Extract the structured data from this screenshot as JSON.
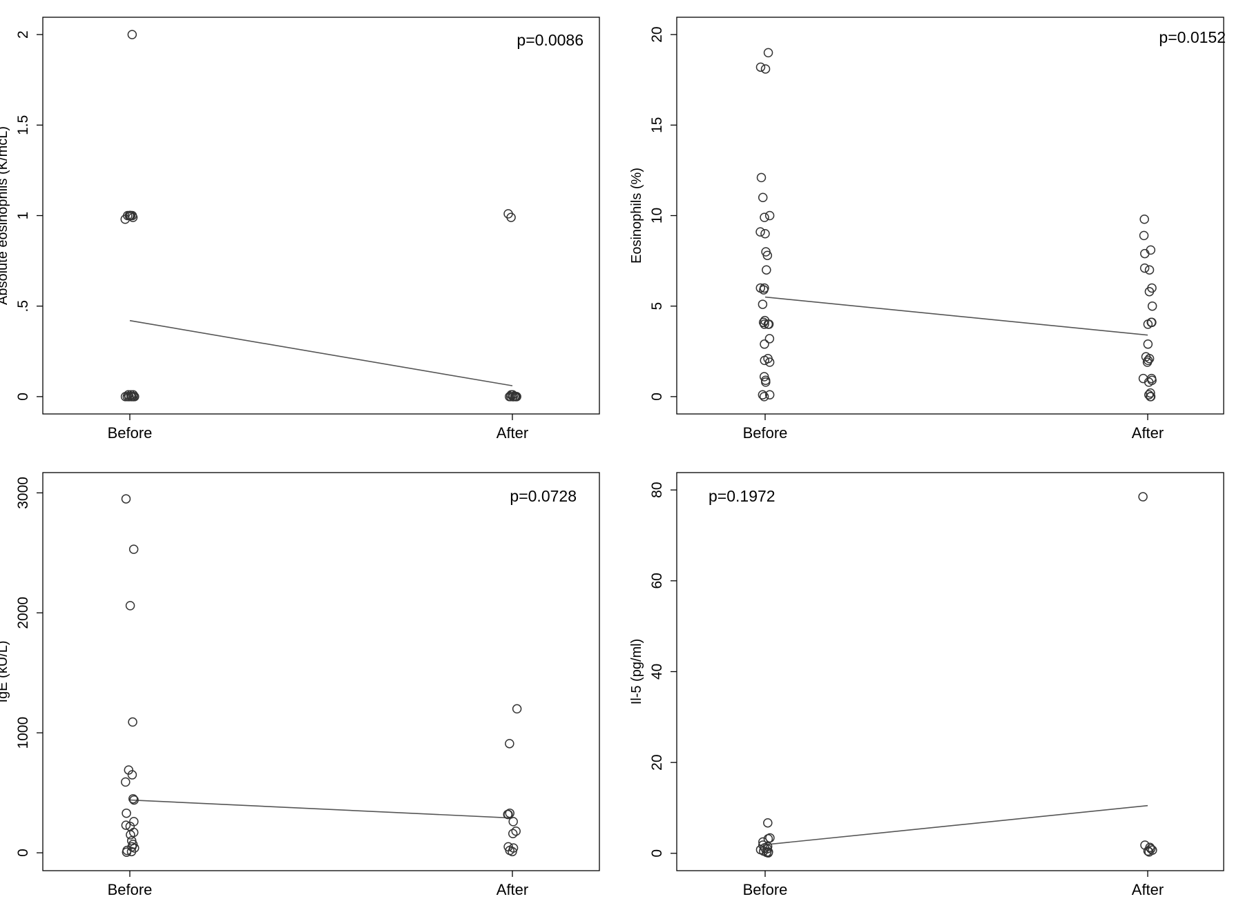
{
  "chart_data": [
    {
      "type": "scatter",
      "ylabel": "Absolute eosinophils (K/mcL)",
      "annotation": "p=0.0086",
      "categories": [
        "Before",
        "After"
      ],
      "yticks": [
        0,
        0.5,
        1,
        1.5,
        2
      ],
      "ytick_labels": [
        "0",
        ".5",
        "1",
        "1.5",
        "2"
      ],
      "ylim": [
        -0.05,
        2.05
      ],
      "series": [
        {
          "values": [
            2.0,
            1.0,
            1.0,
            1.0,
            0.99,
            1.0,
            1.0,
            1.0,
            1.0,
            0.98,
            1.0,
            0.01,
            0.0,
            0.0,
            0.01,
            0.0,
            0.0,
            0.0,
            0.0,
            0.0,
            0.01,
            0.0,
            0.0
          ]
        },
        {
          "values": [
            1.01,
            0.99,
            0.0,
            0.0,
            0.01,
            0.0,
            0.0,
            0.0,
            0.0,
            0.01,
            0.0,
            0.0,
            0.0,
            0.0
          ]
        }
      ],
      "means": [
        0.42,
        0.06
      ]
    },
    {
      "type": "scatter",
      "ylabel": "Eosinophils (%)",
      "annotation": "p=0.0152",
      "categories": [
        "Before",
        "After"
      ],
      "yticks": [
        0,
        5,
        10,
        15,
        20
      ],
      "ytick_labels": [
        "0",
        "5",
        "10",
        "15",
        "20"
      ],
      "ylim": [
        -0.5,
        20.5
      ],
      "series": [
        {
          "values": [
            19.0,
            18.1,
            18.2,
            12.1,
            11.0,
            10.0,
            9.9,
            9.1,
            9.0,
            8.0,
            7.8,
            7.0,
            6.0,
            6.0,
            5.9,
            5.1,
            4.2,
            4.1,
            4.0,
            4.0,
            4.0,
            3.2,
            2.9,
            2.1,
            2.0,
            1.9,
            1.1,
            0.9,
            0.8,
            0.1,
            0.0,
            0.1
          ]
        },
        {
          "values": [
            9.8,
            8.9,
            8.1,
            7.9,
            7.1,
            7.0,
            6.0,
            5.8,
            5.0,
            4.1,
            4.0,
            4.1,
            2.9,
            2.2,
            2.1,
            2.0,
            1.9,
            1.0,
            1.0,
            0.9,
            0.8,
            0.2,
            0.1,
            0.0,
            0.0
          ]
        }
      ],
      "means": [
        5.5,
        3.4
      ]
    },
    {
      "type": "scatter",
      "ylabel": "IgE (kU/L)",
      "annotation": "p=0.0728",
      "categories": [
        "Before",
        "After"
      ],
      "yticks": [
        0,
        1000,
        2000,
        3000
      ],
      "ytick_labels": [
        "0",
        "1000",
        "2000",
        "3000"
      ],
      "ylim": [
        -80,
        3100
      ],
      "series": [
        {
          "values": [
            2950,
            2530,
            2060,
            1090,
            690,
            650,
            590,
            450,
            440,
            330,
            260,
            230,
            220,
            170,
            150,
            100,
            70,
            50,
            40,
            20,
            10,
            5
          ]
        },
        {
          "values": [
            1200,
            910,
            330,
            320,
            320,
            260,
            180,
            160,
            50,
            40,
            20,
            10
          ]
        }
      ],
      "means": [
        440,
        290
      ]
    },
    {
      "type": "scatter",
      "ylabel": "Il-5 (pg/ml)",
      "annotation": "p=0.1972",
      "categories": [
        "Before",
        "After"
      ],
      "yticks": [
        0,
        20,
        40,
        60,
        80
      ],
      "ytick_labels": [
        "0",
        "20",
        "40",
        "60",
        "80"
      ],
      "ylim": [
        -2,
        82
      ],
      "series": [
        {
          "values": [
            6.7,
            3.4,
            3.2,
            2.5,
            1.8,
            1.5,
            1.2,
            1.0,
            0.8,
            0.5,
            0.3,
            0.2,
            0.1
          ]
        },
        {
          "values": [
            78.5,
            1.8,
            1.3,
            1.0,
            0.7,
            0.5,
            0.3
          ]
        }
      ],
      "means": [
        1.9,
        10.5
      ]
    }
  ]
}
